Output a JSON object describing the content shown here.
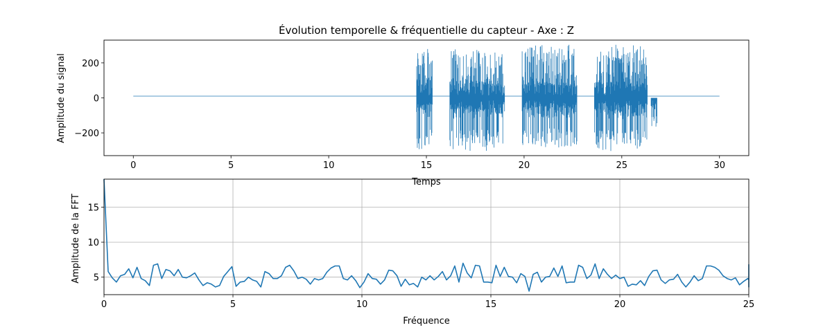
{
  "chart_data": [
    {
      "type": "line",
      "title": "Évolution temporelle & fréquentielle du capteur  - Axe : Z",
      "xlabel": "Temps",
      "ylabel": "Amplitude du signal",
      "xlim": [
        -1.5,
        31.5
      ],
      "ylim": [
        -330,
        330
      ],
      "xticks": [
        "0",
        "5",
        "10",
        "15",
        "20",
        "25",
        "30"
      ],
      "yticks": [
        "200",
        "0",
        "−200"
      ],
      "grid": false,
      "series": [
        {
          "color": "#1f77b4",
          "baseline": 10,
          "x_start": 0,
          "x_end": 30,
          "bursts": [
            {
              "x": [
                14.5,
                15.3
              ],
              "min": -300,
              "max": 280
            },
            {
              "x": [
                16.2,
                19.0
              ],
              "min": -305,
              "max": 280
            },
            {
              "x": [
                19.9,
                22.7
              ],
              "min": -290,
              "max": 305
            },
            {
              "x": [
                23.6,
                26.3
              ],
              "min": -305,
              "max": 305
            },
            {
              "x": [
                26.5,
                26.8
              ],
              "min": -170,
              "max": 0
            }
          ]
        }
      ]
    },
    {
      "type": "line",
      "title": "",
      "xlabel": "Fréquence",
      "ylabel": "Amplitude de la FFT",
      "xlim": [
        0,
        25
      ],
      "ylim": [
        2.5,
        19
      ],
      "xticks": [
        "0",
        "5",
        "10",
        "15",
        "20",
        "25"
      ],
      "yticks": [
        "5",
        "10",
        "15"
      ],
      "grid": true,
      "series": [
        {
          "color": "#1f77b4",
          "x_step": 0.16,
          "values": [
            19.0,
            5.8,
            4.9,
            4.3,
            5.2,
            5.4,
            6.2,
            4.9,
            6.4,
            4.8,
            4.5,
            3.8,
            6.7,
            6.9,
            4.8,
            6.1,
            5.9,
            5.2,
            6.1,
            5.0,
            4.9,
            5.2,
            5.6,
            4.6,
            3.8,
            4.2,
            4.0,
            3.6,
            3.8,
            5.1,
            5.8,
            6.5,
            3.7,
            4.3,
            4.4,
            5.0,
            4.6,
            4.4,
            3.6,
            5.8,
            5.5,
            4.8,
            4.8,
            5.2,
            6.4,
            6.7,
            5.9,
            4.8,
            5.0,
            4.7,
            4.0,
            4.8,
            4.6,
            4.8,
            5.7,
            6.3,
            6.6,
            6.6,
            4.8,
            4.6,
            5.2,
            4.5,
            3.5,
            4.3,
            5.5,
            4.8,
            4.7,
            4.0,
            4.6,
            6.0,
            5.9,
            5.2,
            3.7,
            4.7,
            3.9,
            4.1,
            3.6,
            5.0,
            4.6,
            5.2,
            4.6,
            5.1,
            5.8,
            4.6,
            5.2,
            6.6,
            4.3,
            7.0,
            5.6,
            4.9,
            6.7,
            6.6,
            4.3,
            4.3,
            4.2,
            6.7,
            5.1,
            6.4,
            5.1,
            5.0,
            4.2,
            5.5,
            5.1,
            3.0,
            5.4,
            5.7,
            4.3,
            5.0,
            5.1,
            6.3,
            5.1,
            6.6,
            4.2,
            4.3,
            4.3,
            6.7,
            6.4,
            4.8,
            5.3,
            6.9,
            4.8,
            6.2,
            5.4,
            4.8,
            5.3,
            4.8,
            5.0,
            3.7,
            4.0,
            3.9,
            4.5,
            3.8,
            5.1,
            5.9,
            6.0,
            4.6,
            4.1,
            4.6,
            4.7,
            5.4,
            4.3,
            3.6,
            4.3,
            5.2,
            4.5,
            4.8,
            6.6,
            6.6,
            6.4,
            6.0,
            5.2,
            4.8,
            4.6,
            4.9,
            3.9,
            4.4,
            4.8,
            4.6,
            5.5,
            6.8,
            6.5,
            5.8,
            5.0,
            4.7,
            4.7,
            5.4,
            5.7,
            3.6,
            4.4,
            4.6,
            5.1,
            4.6
          ]
        }
      ]
    }
  ]
}
